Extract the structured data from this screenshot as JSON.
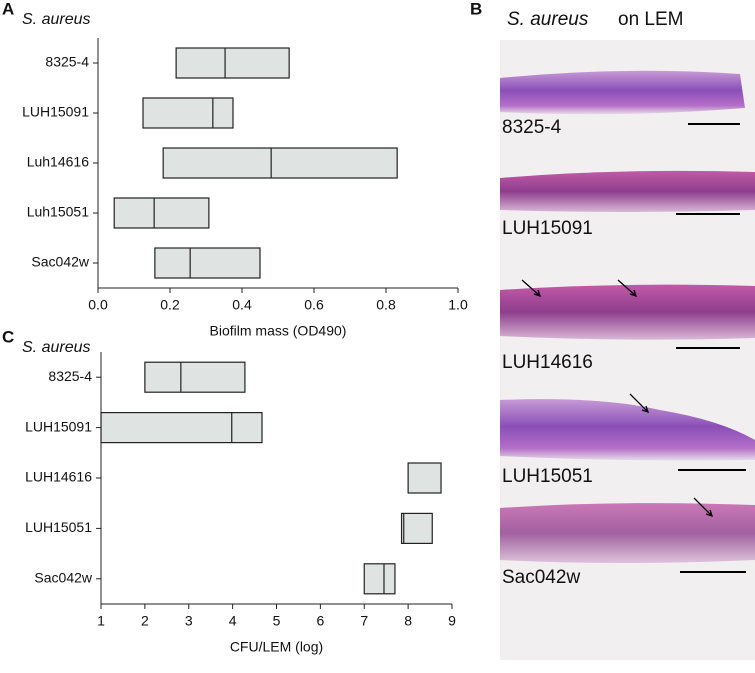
{
  "chart_data": [
    {
      "type": "floating-bar",
      "panel": "A",
      "subtitle": "S. aureus",
      "xlabel": "Biofilm mass (OD490)",
      "categories": [
        "8325-4",
        "LUH15091",
        "Luh14616",
        "Luh15051",
        "Sac042w"
      ],
      "low": [
        0.217,
        0.125,
        0.181,
        0.045,
        0.158
      ],
      "median": [
        0.353,
        0.319,
        0.481,
        0.156,
        0.256
      ],
      "high": [
        0.531,
        0.375,
        0.831,
        0.308,
        0.45
      ],
      "color": "#dfe3e2",
      "xlim": [
        0,
        1
      ],
      "xticks": [
        {
          "value": 0,
          "label": "0.0"
        },
        0.2,
        0.4,
        0.6,
        0.8,
        {
          "value": 1,
          "label": "1.0"
        }
      ]
    },
    {
      "type": "floating-bar",
      "panel": "C",
      "subtitle": "S. aureus",
      "xlabel": "CFU/LEM (log)",
      "categories": [
        "8325-4",
        "LUH15091",
        "LUH14616",
        "LUH15051",
        "Sac042w"
      ],
      "low": [
        2.0,
        1.0,
        8.0,
        7.85,
        7.0
      ],
      "median": [
        2.82,
        3.98,
        null,
        7.9,
        7.45
      ],
      "high": [
        4.28,
        4.67,
        8.75,
        8.55,
        7.7
      ],
      "color": "#dfe3e2",
      "xlim": [
        1,
        9
      ],
      "xticks": [
        1,
        2,
        3,
        4,
        5,
        6,
        7,
        8,
        9
      ]
    }
  ],
  "panel_b": {
    "letter": "B",
    "title_species": "S. aureus",
    "title_rest": "on LEM",
    "labels": [
      "8325-4",
      "LUH15091",
      "LUH14616",
      "LUH15051",
      "Sac042w"
    ]
  }
}
